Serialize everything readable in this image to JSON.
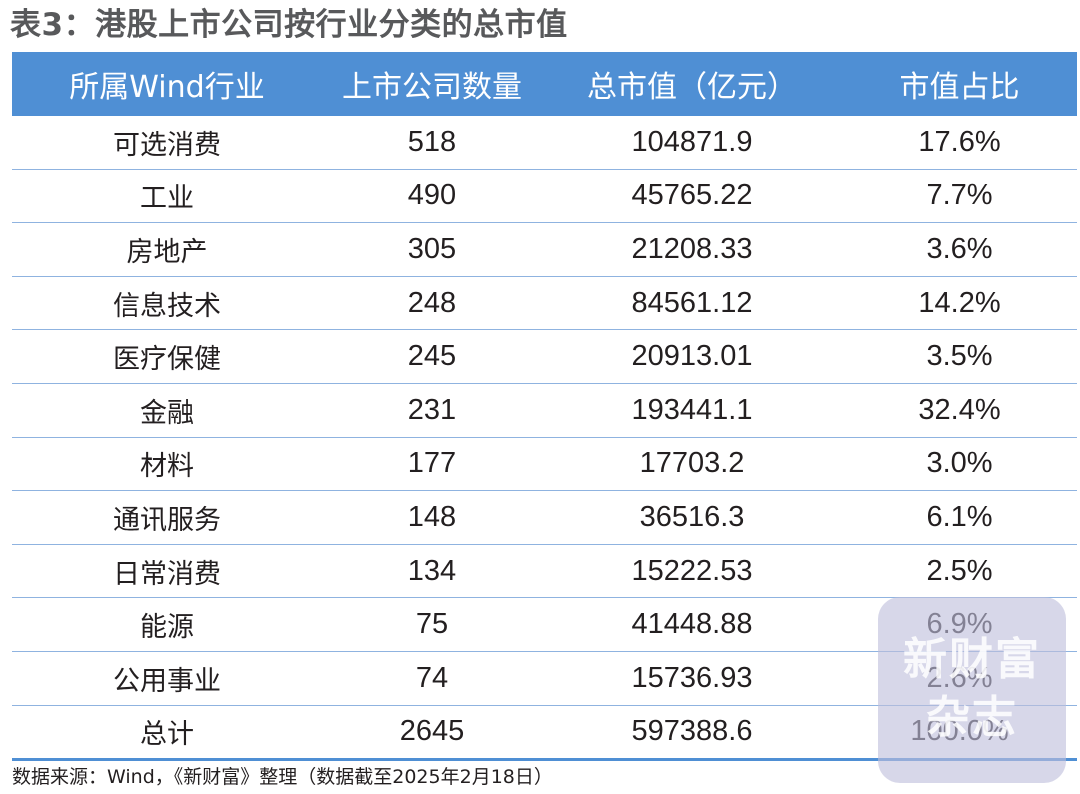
{
  "title": "表3：港股上市公司按行业分类的总市值",
  "table": {
    "headers": [
      "所属Wind行业",
      "上市公司数量",
      "总市值（亿元）",
      "市值占比"
    ],
    "rows": [
      {
        "industry": "可选消费",
        "count": "518",
        "market_cap": "104871.9",
        "share": "17.6%"
      },
      {
        "industry": "工业",
        "count": "490",
        "market_cap": "45765.22",
        "share": "7.7%"
      },
      {
        "industry": "房地产",
        "count": "305",
        "market_cap": "21208.33",
        "share": "3.6%"
      },
      {
        "industry": "信息技术",
        "count": "248",
        "market_cap": "84561.12",
        "share": "14.2%"
      },
      {
        "industry": "医疗保健",
        "count": "245",
        "market_cap": "20913.01",
        "share": "3.5%"
      },
      {
        "industry": "金融",
        "count": "231",
        "market_cap": "193441.1",
        "share": "32.4%"
      },
      {
        "industry": "材料",
        "count": "177",
        "market_cap": "17703.2",
        "share": "3.0%"
      },
      {
        "industry": "通讯服务",
        "count": "148",
        "market_cap": "36516.3",
        "share": "6.1%"
      },
      {
        "industry": "日常消费",
        "count": "134",
        "market_cap": "15222.53",
        "share": "2.5%"
      },
      {
        "industry": "能源",
        "count": "75",
        "market_cap": "41448.88",
        "share": "6.9%"
      },
      {
        "industry": "公用事业",
        "count": "74",
        "market_cap": "15736.93",
        "share": "2.6%"
      },
      {
        "industry": "总计",
        "count": "2645",
        "market_cap": "597388.6",
        "share": "100.0%"
      }
    ]
  },
  "source": "数据来源：Wind，《新财富》整理（数据截至2025年2月18日）",
  "watermark": {
    "line1": "新财富",
    "line2": "杂志"
  },
  "colors": {
    "header_bg": "#4f8fd4",
    "title": "#58595b"
  }
}
